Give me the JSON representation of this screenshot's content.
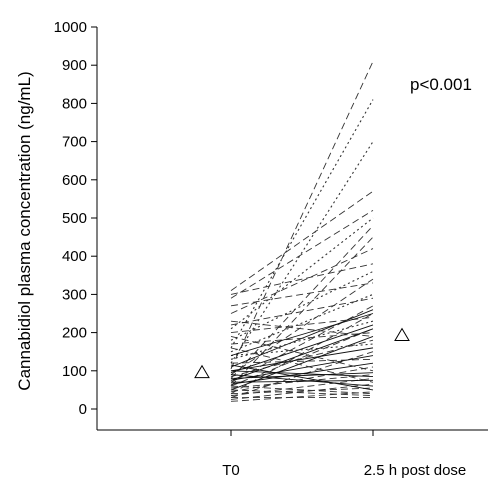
{
  "chart_data": {
    "type": "line",
    "title": "",
    "ylabel": "Cannabidiol plasma concentration (ng/mL)",
    "xlabel": "",
    "categories": [
      "T0",
      "2.5 h post dose"
    ],
    "ylim": [
      0,
      1000
    ],
    "yticks": [
      0,
      100,
      200,
      300,
      400,
      500,
      600,
      700,
      800,
      900,
      1000
    ],
    "annotation": "p<0.001",
    "means": [
      95,
      192
    ],
    "series": [
      {
        "values": [
          105,
          910
        ],
        "style": "dashed"
      },
      {
        "values": [
          160,
          810
        ],
        "style": "dotted"
      },
      {
        "values": [
          120,
          700
        ],
        "style": "dotted"
      },
      {
        "values": [
          310,
          570
        ],
        "style": "dashed"
      },
      {
        "values": [
          290,
          520
        ],
        "style": "dashed"
      },
      {
        "values": [
          210,
          500
        ],
        "style": "dotted"
      },
      {
        "values": [
          80,
          480
        ],
        "style": "dashed"
      },
      {
        "values": [
          60,
          450
        ],
        "style": "dashed"
      },
      {
        "values": [
          250,
          420
        ],
        "style": "dashed"
      },
      {
        "values": [
          300,
          380
        ],
        "style": "dashed"
      },
      {
        "values": [
          180,
          360
        ],
        "style": "dotted"
      },
      {
        "values": [
          90,
          340
        ],
        "style": "dashed"
      },
      {
        "values": [
          270,
          330
        ],
        "style": "dashed"
      },
      {
        "values": [
          150,
          300
        ],
        "style": "dotted"
      },
      {
        "values": [
          220,
          290
        ],
        "style": "dashed"
      },
      {
        "values": [
          70,
          270
        ],
        "style": "dashed"
      },
      {
        "values": [
          110,
          260
        ],
        "style": "solid"
      },
      {
        "values": [
          40,
          250
        ],
        "style": "dashed"
      },
      {
        "values": [
          200,
          240
        ],
        "style": "dashed"
      },
      {
        "values": [
          130,
          230
        ],
        "style": "dotted"
      },
      {
        "values": [
          95,
          220
        ],
        "style": "solid"
      },
      {
        "values": [
          60,
          210
        ],
        "style": "dashed"
      },
      {
        "values": [
          170,
          200
        ],
        "style": "dashed"
      },
      {
        "values": [
          50,
          190
        ],
        "style": "solid"
      },
      {
        "values": [
          85,
          180
        ],
        "style": "dashed"
      },
      {
        "values": [
          140,
          170
        ],
        "style": "dotted"
      },
      {
        "values": [
          100,
          160
        ],
        "style": "solid"
      },
      {
        "values": [
          30,
          150
        ],
        "style": "dashed"
      },
      {
        "values": [
          75,
          140
        ],
        "style": "solid"
      },
      {
        "values": [
          120,
          130
        ],
        "style": "dashed"
      },
      {
        "values": [
          65,
          120
        ],
        "style": "solid"
      },
      {
        "values": [
          45,
          110
        ],
        "style": "dashed"
      },
      {
        "values": [
          190,
          100
        ],
        "style": "dashed"
      },
      {
        "values": [
          80,
          95
        ],
        "style": "solid"
      },
      {
        "values": [
          55,
          90
        ],
        "style": "dashed"
      },
      {
        "values": [
          100,
          85
        ],
        "style": "solid"
      },
      {
        "values": [
          35,
          80
        ],
        "style": "dashed"
      },
      {
        "values": [
          70,
          75
        ],
        "style": "solid"
      },
      {
        "values": [
          160,
          70
        ],
        "style": "dashed"
      },
      {
        "values": [
          25,
          65
        ],
        "style": "dashed"
      },
      {
        "values": [
          90,
          60
        ],
        "style": "solid"
      },
      {
        "values": [
          40,
          55
        ],
        "style": "dashed"
      },
      {
        "values": [
          115,
          50
        ],
        "style": "solid"
      },
      {
        "values": [
          20,
          45
        ],
        "style": "dashed"
      },
      {
        "values": [
          60,
          40
        ],
        "style": "dashed"
      },
      {
        "values": [
          30,
          30
        ],
        "style": "dashed"
      },
      {
        "values": [
          230,
          190
        ],
        "style": "dashed"
      },
      {
        "values": [
          75,
          210
        ],
        "style": "solid"
      },
      {
        "values": [
          140,
          250
        ],
        "style": "solid"
      },
      {
        "values": [
          50,
          35
        ],
        "style": "dashed"
      }
    ]
  }
}
